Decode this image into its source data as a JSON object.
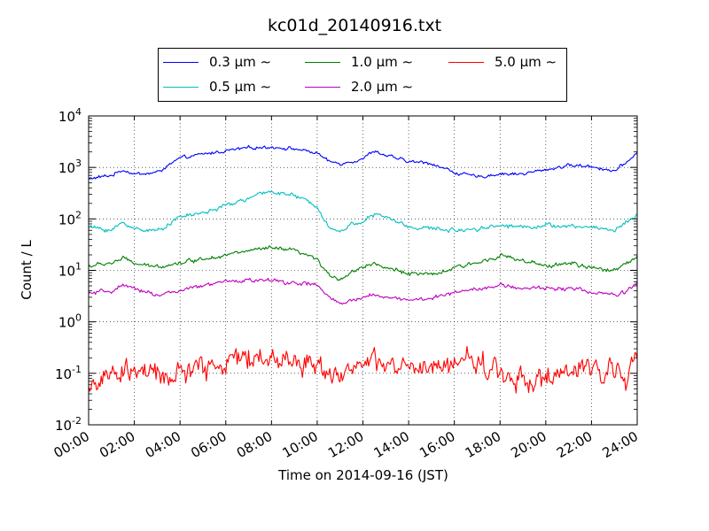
{
  "chart_data": {
    "type": "line",
    "title": "kc01d_20140916.txt",
    "xlabel": "Time on 2014-09-16 (JST)",
    "ylabel": "Count / L",
    "yscale": "log",
    "ylim": [
      0.01,
      10000
    ],
    "xlim": [
      0,
      24
    ],
    "grid": true,
    "legend_position": "top",
    "x_ticks": [
      "00:00",
      "02:00",
      "04:00",
      "06:00",
      "08:00",
      "10:00",
      "12:00",
      "14:00",
      "16:00",
      "18:00",
      "20:00",
      "22:00",
      "24:00"
    ],
    "y_ticks": [
      {
        "value": 0.01,
        "base": "10",
        "exp": "-2"
      },
      {
        "value": 0.1,
        "base": "10",
        "exp": "-1"
      },
      {
        "value": 1,
        "base": "10",
        "exp": "0"
      },
      {
        "value": 10,
        "base": "10",
        "exp": "1"
      },
      {
        "value": 100,
        "base": "10",
        "exp": "2"
      },
      {
        "value": 1000,
        "base": "10",
        "exp": "3"
      },
      {
        "value": 10000,
        "base": "10",
        "exp": "4"
      }
    ],
    "x_hours": [
      0,
      1,
      1.5,
      2,
      2.5,
      3,
      4,
      5,
      6,
      7,
      8,
      9,
      10,
      10.5,
      11,
      11.5,
      12,
      12.5,
      13,
      14,
      15,
      16,
      17,
      18,
      19,
      20,
      21,
      22,
      23,
      23.5,
      24
    ],
    "series": [
      {
        "name": "0.3 μm ∼",
        "color": "#0000ff",
        "noise": 0.04,
        "values": [
          600,
          700,
          900,
          750,
          750,
          800,
          1500,
          1800,
          2100,
          2400,
          2500,
          2300,
          1900,
          1300,
          1200,
          1300,
          1500,
          2100,
          1700,
          1300,
          1200,
          800,
          650,
          750,
          750,
          900,
          1100,
          1050,
          850,
          1200,
          2000
        ]
      },
      {
        "name": "0.5 μm ∼",
        "color": "#00bfbf",
        "noise": 0.05,
        "values": [
          70,
          60,
          85,
          65,
          62,
          58,
          110,
          130,
          180,
          250,
          350,
          280,
          180,
          70,
          55,
          80,
          90,
          120,
          110,
          70,
          65,
          60,
          65,
          75,
          70,
          75,
          70,
          70,
          60,
          85,
          120
        ]
      },
      {
        "name": "1.0 μm ∼",
        "color": "#008000",
        "noise": 0.05,
        "values": [
          12,
          14,
          17,
          14,
          12,
          12,
          14,
          17,
          20,
          24,
          27,
          24,
          16,
          8,
          7,
          9,
          12,
          14,
          11,
          9,
          8,
          11,
          14,
          20,
          15,
          12,
          14,
          11,
          10,
          14,
          19
        ]
      },
      {
        "name": "2.0 μm ∼",
        "color": "#bf00bf",
        "noise": 0.05,
        "values": [
          3.5,
          4,
          5,
          4.2,
          4,
          3.3,
          4,
          5,
          6,
          6.5,
          6.3,
          5.7,
          5.2,
          3,
          2.2,
          2.5,
          3,
          3.5,
          3,
          2.7,
          2.8,
          3.8,
          4.5,
          5,
          4.5,
          4.5,
          4.5,
          3.8,
          3.3,
          3.8,
          5.5
        ]
      },
      {
        "name": "5.0 μm ∼",
        "color": "#ff0000",
        "noise": 0.28,
        "values": [
          0.06,
          0.08,
          0.1,
          0.12,
          0.1,
          0.08,
          0.1,
          0.13,
          0.17,
          0.2,
          0.2,
          0.17,
          0.15,
          0.12,
          0.1,
          0.12,
          0.15,
          0.15,
          0.14,
          0.12,
          0.11,
          0.17,
          0.18,
          0.1,
          0.08,
          0.07,
          0.1,
          0.12,
          0.13,
          0.1,
          0.15
        ]
      }
    ]
  }
}
